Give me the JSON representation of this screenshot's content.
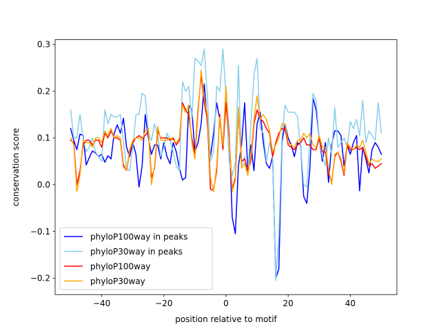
{
  "chart_data": {
    "type": "line",
    "title": "",
    "xlabel": "position relative to motif",
    "ylabel": "conservation score",
    "xlim": [
      -55,
      55
    ],
    "ylim": [
      -0.235,
      0.31
    ],
    "xticks": [
      -40,
      -20,
      0,
      20,
      40
    ],
    "yticks": [
      -0.2,
      -0.1,
      0.0,
      0.1,
      0.2,
      0.3
    ],
    "xtick_labels": [
      "−40",
      "−20",
      "0",
      "20",
      "40"
    ],
    "ytick_labels": [
      "−0.2",
      "−0.1",
      "0.0",
      "0.1",
      "0.2",
      "0.3"
    ],
    "grid": false,
    "legend_position": "lower-left",
    "x": [
      -50,
      -49,
      -48,
      -47,
      -46,
      -45,
      -44,
      -43,
      -42,
      -41,
      -40,
      -39,
      -38,
      -37,
      -36,
      -35,
      -34,
      -33,
      -32,
      -31,
      -30,
      -29,
      -28,
      -27,
      -26,
      -25,
      -24,
      -23,
      -22,
      -21,
      -20,
      -19,
      -18,
      -17,
      -16,
      -15,
      -14,
      -13,
      -12,
      -11,
      -10,
      -9,
      -8,
      -7,
      -6,
      -5,
      -4,
      -3,
      -2,
      -1,
      0,
      1,
      2,
      3,
      4,
      5,
      6,
      7,
      8,
      9,
      10,
      11,
      12,
      13,
      14,
      15,
      16,
      17,
      18,
      19,
      20,
      21,
      22,
      23,
      24,
      25,
      26,
      27,
      28,
      29,
      30,
      31,
      32,
      33,
      34,
      35,
      36,
      37,
      38,
      39,
      40,
      41,
      42,
      43,
      44,
      45,
      46,
      47,
      48,
      49,
      50
    ],
    "series": [
      {
        "name": "phyloP100way in peaks",
        "color": "#0000ff",
        "values": [
          0.12,
          0.095,
          0.075,
          0.108,
          0.105,
          0.042,
          0.058,
          0.072,
          0.068,
          0.06,
          0.065,
          0.048,
          0.062,
          0.055,
          0.11,
          0.128,
          0.11,
          0.142,
          0.08,
          0.06,
          0.09,
          0.065,
          -0.005,
          0.04,
          0.15,
          0.1,
          0.065,
          0.085,
          0.085,
          0.055,
          0.09,
          0.06,
          0.045,
          0.09,
          0.07,
          0.035,
          0.01,
          0.015,
          0.17,
          0.16,
          0.07,
          0.09,
          0.13,
          0.215,
          0.13,
          0.06,
          0.11,
          0.175,
          0.14,
          0.085,
          0.2,
          0.11,
          -0.07,
          -0.105,
          0.04,
          0.085,
          0.175,
          0.03,
          0.085,
          0.03,
          0.13,
          0.155,
          0.09,
          0.045,
          0.035,
          0.06,
          -0.2,
          -0.18,
          0.09,
          0.13,
          0.1,
          0.085,
          0.06,
          0.09,
          0.085,
          -0.025,
          -0.04,
          0.035,
          0.185,
          0.16,
          0.1,
          0.05,
          0.09,
          0.005,
          0.085,
          0.115,
          0.115,
          0.105,
          0.04,
          0.085,
          0.065,
          0.09,
          0.105,
          -0.013,
          0.08,
          0.055,
          0.025,
          0.075,
          0.09,
          0.08,
          0.065
        ]
      },
      {
        "name": "phyloP30way in peaks",
        "color": "#87ceeb",
        "values": [
          0.16,
          0.1,
          0.1,
          0.15,
          0.1,
          0.07,
          0.08,
          0.1,
          0.07,
          0.06,
          0.05,
          0.16,
          0.13,
          0.15,
          0.145,
          0.145,
          0.15,
          0.09,
          0.035,
          0.03,
          0.08,
          0.15,
          0.15,
          0.195,
          0.19,
          0.11,
          0.095,
          0.13,
          0.105,
          0.06,
          0.08,
          0.11,
          0.095,
          0.07,
          0.04,
          0.03,
          0.22,
          0.2,
          0.21,
          0.14,
          0.27,
          0.265,
          0.255,
          0.29,
          0.19,
          0.05,
          0.07,
          0.21,
          0.2,
          0.29,
          0.19,
          0.05,
          0.02,
          0.045,
          0.255,
          0.04,
          0.06,
          0.02,
          0.13,
          0.235,
          0.27,
          0.12,
          0.11,
          0.05,
          0.09,
          0.06,
          -0.205,
          -0.11,
          0.1,
          0.17,
          0.155,
          0.155,
          0.155,
          0.145,
          0.08,
          0.0,
          -0.005,
          0.1,
          0.195,
          0.18,
          0.1,
          0.06,
          0.04,
          0.1,
          0.065,
          0.165,
          0.08,
          0.09,
          0.1,
          0.08,
          0.135,
          0.12,
          0.14,
          0.105,
          0.18,
          0.09,
          0.115,
          0.105,
          0.095,
          0.175,
          0.11
        ]
      },
      {
        "name": "phyloP100way",
        "color": "#ff0000",
        "values": [
          0.095,
          0.09,
          0.0,
          0.03,
          0.085,
          0.095,
          0.095,
          0.085,
          0.095,
          0.095,
          0.08,
          0.11,
          0.1,
          0.115,
          0.1,
          0.1,
          0.095,
          0.04,
          0.03,
          0.07,
          0.09,
          0.1,
          0.105,
          0.1,
          0.105,
          0.115,
          0.015,
          0.035,
          0.115,
          0.1,
          0.1,
          0.1,
          0.095,
          0.1,
          0.085,
          0.095,
          0.175,
          0.16,
          0.15,
          0.1,
          0.065,
          0.16,
          0.235,
          0.175,
          0.14,
          -0.01,
          -0.012,
          0.03,
          0.15,
          0.075,
          0.175,
          0.1,
          -0.01,
          0.015,
          0.155,
          0.05,
          0.055,
          0.03,
          0.05,
          0.13,
          0.16,
          0.14,
          0.135,
          0.12,
          0.11,
          0.06,
          0.09,
          0.11,
          0.12,
          0.12,
          0.085,
          0.08,
          0.075,
          0.085,
          0.09,
          0.1,
          0.085,
          0.085,
          0.075,
          0.075,
          0.1,
          0.07,
          0.07,
          0.025,
          0.005,
          0.06,
          0.07,
          0.05,
          0.02,
          0.085,
          0.075,
          0.075,
          0.08,
          0.075,
          0.08,
          0.06,
          0.04,
          0.045,
          0.035,
          0.04,
          0.045
        ]
      },
      {
        "name": "phyloP30way",
        "color": "#ffa500",
        "values": [
          0.1,
          0.085,
          -0.015,
          0.02,
          0.095,
          0.09,
          0.09,
          0.08,
          0.1,
          0.1,
          0.09,
          0.115,
          0.105,
          0.12,
          0.1,
          0.105,
          0.1,
          0.045,
          0.03,
          0.075,
          0.095,
          0.1,
          0.1,
          0.095,
          0.115,
          0.12,
          0.0,
          0.04,
          0.125,
          0.095,
          0.095,
          0.095,
          0.1,
          0.095,
          0.09,
          0.1,
          0.17,
          0.155,
          0.17,
          0.09,
          0.055,
          0.15,
          0.245,
          0.185,
          0.15,
          0.015,
          -0.015,
          0.04,
          0.145,
          0.085,
          0.21,
          0.095,
          -0.015,
          0.01,
          0.165,
          0.035,
          0.045,
          0.02,
          0.06,
          0.14,
          0.19,
          0.14,
          0.15,
          0.14,
          0.115,
          0.07,
          0.085,
          0.1,
          0.13,
          0.13,
          0.09,
          0.085,
          0.08,
          0.095,
          0.095,
          0.11,
          0.1,
          0.11,
          0.085,
          0.08,
          0.105,
          0.08,
          0.08,
          0.035,
          0.0,
          0.065,
          0.07,
          0.055,
          0.025,
          0.09,
          0.08,
          0.075,
          0.085,
          0.08,
          0.095,
          0.07,
          0.045,
          0.055,
          0.05,
          0.05,
          0.055
        ]
      }
    ]
  }
}
